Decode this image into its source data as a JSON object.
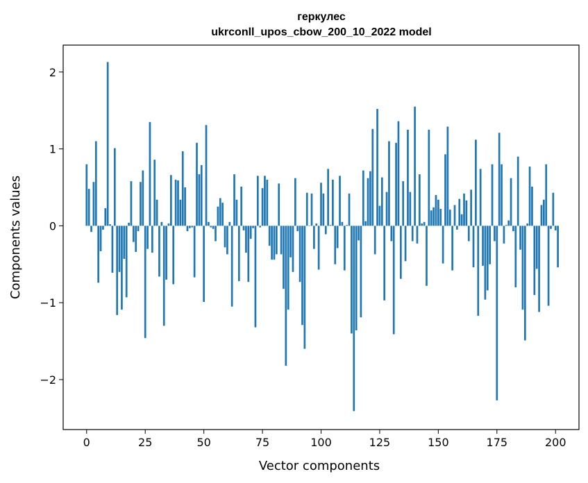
{
  "chart_data": {
    "type": "bar",
    "title": "геркулес",
    "subtitle": "ukrconll_upos_cbow_200_10_2022 model",
    "xlabel": "Vector components",
    "ylabel": "Components values",
    "xlim": [
      -10,
      210
    ],
    "ylim": [
      -2.65,
      2.35
    ],
    "xticks": [
      0,
      25,
      50,
      75,
      100,
      125,
      150,
      175,
      200
    ],
    "yticks": [
      -2,
      -1,
      0,
      1,
      2
    ],
    "ytick_labels": [
      "−2",
      "−1",
      "0",
      "1",
      "2"
    ],
    "bar_color": "#1f77b4",
    "grid": false,
    "legend": "none",
    "values": [
      0.8,
      0.48,
      -0.08,
      0.57,
      1.1,
      -0.74,
      -0.33,
      -0.05,
      0.23,
      2.13,
      0.02,
      -0.61,
      1.01,
      -1.16,
      -0.6,
      -1.09,
      -0.43,
      -0.93,
      0.04,
      0.58,
      -0.21,
      -0.34,
      -0.07,
      0.57,
      0.72,
      -1.46,
      -0.3,
      1.35,
      -0.35,
      0.86,
      0.34,
      -0.66,
      0.05,
      -1.3,
      -0.7,
      0.03,
      0.66,
      -0.76,
      0.6,
      0.59,
      0.34,
      0.97,
      0.5,
      -0.07,
      -0.03,
      -0.02,
      -0.67,
      1.08,
      0.67,
      0.79,
      -0.99,
      1.31,
      0.05,
      -0.02,
      -0.04,
      -0.2,
      0.25,
      0.36,
      0.3,
      -0.28,
      -0.37,
      0.05,
      -1.05,
      0.67,
      0.34,
      -0.72,
      0.51,
      -0.06,
      -0.35,
      -0.73,
      -0.17,
      -0.03,
      -1.32,
      0.65,
      -0.02,
      0.49,
      0.65,
      0.6,
      -0.26,
      -0.44,
      -0.44,
      -0.37,
      0.55,
      -0.37,
      -0.82,
      -1.82,
      -1.09,
      -0.41,
      -0.6,
      0.62,
      -0.07,
      -0.73,
      -1.29,
      -1.6,
      0.43,
      0.0,
      0.42,
      -0.3,
      0.03,
      -0.57,
      0.56,
      0.42,
      -0.11,
      0.74,
      0.01,
      0.6,
      -0.5,
      -0.29,
      0.65,
      0.05,
      -0.58,
      0.01,
      0.42,
      -1.4,
      -2.41,
      -1.36,
      -0.19,
      -1.19,
      0.72,
      0.06,
      0.62,
      0.71,
      1.26,
      -0.37,
      1.52,
      0.26,
      0.63,
      -0.97,
      0.44,
      1.1,
      -0.2,
      -1.41,
      1.08,
      1.36,
      -0.69,
      0.58,
      -0.46,
      1.25,
      0.44,
      -0.2,
      1.55,
      -0.23,
      0.67,
      0.03,
      0.05,
      -0.78,
      1.25,
      0.2,
      0.24,
      0.4,
      0.34,
      0.22,
      -0.49,
      0.93,
      1.29,
      0.21,
      -0.58,
      0.27,
      -0.05,
      0.35,
      0.15,
      0.42,
      0.33,
      -0.2,
      0.47,
      -0.54,
      1.12,
      -1.17,
      0.74,
      -0.52,
      -0.96,
      -0.84,
      -0.5,
      0.8,
      -0.2,
      -2.27,
      1.21,
      0.8,
      -0.23,
      0.01,
      0.07,
      0.62,
      -0.07,
      -0.8,
      0.9,
      -0.31,
      -1.09,
      -1.49,
      0.03,
      0.77,
      0.51,
      -0.9,
      -0.56,
      -1.12,
      0.27,
      0.34,
      0.8,
      -1.04,
      -0.04,
      0.43,
      -0.06,
      -0.54
    ]
  }
}
